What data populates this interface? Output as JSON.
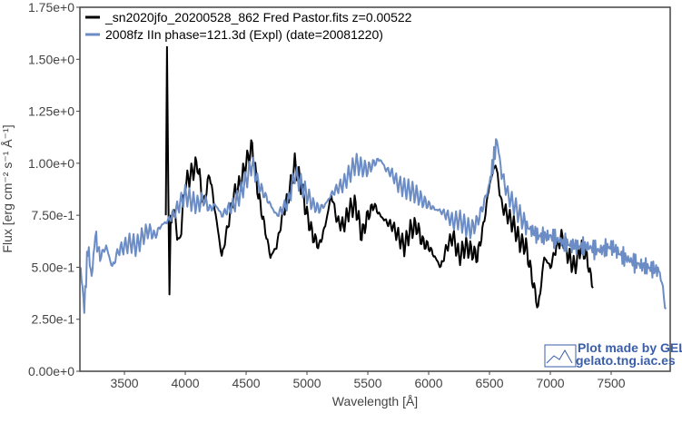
{
  "chart_data": {
    "type": "line",
    "title": "",
    "xlabel": "Wavelength [Å]",
    "ylabel": "Flux [erg cm⁻² s⁻¹ Å⁻¹]",
    "xlim": [
      3134,
      7985
    ],
    "ylim": [
      0,
      1.75
    ],
    "xticks": [
      3500,
      4000,
      4500,
      5000,
      5500,
      6000,
      6500,
      7000,
      7500
    ],
    "xtick_labels": [
      "3500",
      "4000",
      "4500",
      "5000",
      "5500",
      "6000",
      "6500",
      "7000",
      "7500"
    ],
    "yticks": [
      0,
      0.25,
      0.5,
      0.75,
      1.0,
      1.25,
      1.5,
      1.75
    ],
    "ytick_labels": [
      "0.00e+0",
      "2.50e-1",
      "5.00e-1",
      "7.50e-1",
      "1.00e+0",
      "1.25e+0",
      "1.50e+0",
      "1.75e+0"
    ],
    "grid": false,
    "legend_position": "top-left",
    "series": [
      {
        "name": "_sn2020jfo_20200528_862 Fred Pastor.fits  z=0.00522",
        "color": "#000000",
        "x": [
          3840,
          3850,
          3860,
          3870,
          3880,
          3900,
          3950,
          4000,
          4050,
          4100,
          4150,
          4200,
          4250,
          4300,
          4350,
          4400,
          4450,
          4500,
          4550,
          4600,
          4650,
          4700,
          4750,
          4800,
          4850,
          4900,
          4950,
          5000,
          5050,
          5100,
          5150,
          5200,
          5250,
          5300,
          5350,
          5400,
          5450,
          5500,
          5550,
          5600,
          5650,
          5700,
          5750,
          5800,
          5850,
          5900,
          5950,
          6000,
          6050,
          6100,
          6150,
          6200,
          6250,
          6300,
          6350,
          6400,
          6450,
          6500,
          6550,
          6600,
          6650,
          6700,
          6750,
          6800,
          6850,
          6900,
          6950,
          7000,
          7050,
          7100,
          7150,
          7200,
          7250,
          7300,
          7350
        ],
        "y": [
          0.75,
          1.55,
          0.9,
          0.35,
          0.7,
          0.8,
          0.6,
          0.9,
          0.95,
          1.0,
          0.8,
          0.95,
          0.75,
          0.55,
          0.7,
          0.85,
          0.9,
          1.0,
          1.08,
          0.85,
          0.7,
          0.55,
          0.6,
          0.75,
          0.85,
          1.0,
          0.9,
          0.75,
          0.65,
          0.6,
          0.7,
          0.85,
          0.72,
          0.7,
          0.78,
          0.8,
          0.65,
          0.75,
          0.8,
          0.75,
          0.72,
          0.7,
          0.65,
          0.6,
          0.68,
          0.7,
          0.62,
          0.6,
          0.55,
          0.5,
          0.6,
          0.65,
          0.55,
          0.6,
          0.58,
          0.55,
          0.7,
          0.9,
          1.0,
          0.8,
          0.75,
          0.7,
          0.62,
          0.6,
          0.45,
          0.3,
          0.55,
          0.5,
          0.6,
          0.65,
          0.55,
          0.5,
          0.6,
          0.55,
          0.4
        ]
      },
      {
        "name": "2008fz  IIn  phase=121.3d (Expl)  (date=20081220)",
        "color": "#6b8cc4",
        "x": [
          3140,
          3170,
          3200,
          3230,
          3260,
          3300,
          3350,
          3400,
          3450,
          3500,
          3550,
          3600,
          3650,
          3700,
          3750,
          3800,
          3850,
          3900,
          3950,
          4000,
          4050,
          4100,
          4150,
          4200,
          4250,
          4300,
          4350,
          4400,
          4450,
          4500,
          4550,
          4600,
          4650,
          4700,
          4750,
          4800,
          4850,
          4900,
          4950,
          5000,
          5050,
          5100,
          5150,
          5200,
          5250,
          5300,
          5350,
          5400,
          5450,
          5500,
          5550,
          5600,
          5650,
          5700,
          5750,
          5800,
          5850,
          5900,
          5950,
          6000,
          6050,
          6100,
          6150,
          6200,
          6250,
          6300,
          6350,
          6400,
          6450,
          6500,
          6530,
          6560,
          6600,
          6650,
          6700,
          6750,
          6800,
          6900,
          7000,
          7100,
          7200,
          7300,
          7400,
          7500,
          7600,
          7700,
          7800,
          7900,
          7950
        ],
        "y": [
          0.5,
          0.3,
          0.6,
          0.45,
          0.65,
          0.55,
          0.6,
          0.5,
          0.58,
          0.6,
          0.62,
          0.6,
          0.65,
          0.68,
          0.65,
          0.7,
          0.72,
          0.75,
          0.8,
          0.85,
          0.82,
          0.8,
          0.83,
          0.78,
          0.8,
          0.75,
          0.78,
          0.8,
          0.85,
          0.92,
          1.0,
          0.9,
          0.85,
          0.8,
          0.75,
          0.78,
          0.82,
          0.95,
          0.9,
          0.85,
          0.8,
          0.78,
          0.8,
          0.85,
          0.88,
          0.9,
          0.95,
          1.0,
          0.98,
          0.97,
          1.0,
          1.02,
          0.97,
          0.95,
          0.9,
          0.88,
          0.87,
          0.85,
          0.82,
          0.8,
          0.78,
          0.77,
          0.75,
          0.72,
          0.73,
          0.7,
          0.68,
          0.72,
          0.8,
          0.9,
          1.0,
          1.12,
          0.95,
          0.85,
          0.8,
          0.75,
          0.7,
          0.65,
          0.65,
          0.62,
          0.6,
          0.6,
          0.58,
          0.6,
          0.55,
          0.52,
          0.5,
          0.48,
          0.3
        ]
      }
    ],
    "watermark": {
      "line1": "Plot made by GELATO",
      "line2": "gelato.tng.iac.es"
    }
  }
}
